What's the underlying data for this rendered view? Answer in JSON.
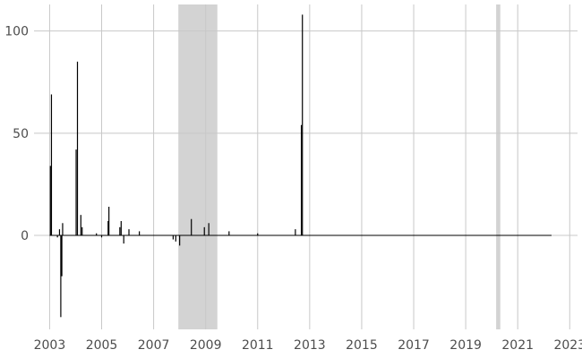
{
  "chart_data": {
    "type": "line",
    "title": "",
    "xlabel": "",
    "ylabel": "",
    "xlim": [
      2002.4,
      2023.3
    ],
    "ylim": [
      -46,
      113
    ],
    "x_ticks": [
      2003,
      2005,
      2007,
      2009,
      2011,
      2013,
      2015,
      2017,
      2019,
      2021,
      2023
    ],
    "x_tick_labels": [
      "2003",
      "2005",
      "2007",
      "2009",
      "2011",
      "2013",
      "2015",
      "2017",
      "2019",
      "2021",
      "2023"
    ],
    "y_ticks": [
      0,
      50,
      100
    ],
    "y_tick_labels": [
      "0",
      "50",
      "100"
    ],
    "grid": true,
    "shaded_periods": [
      {
        "start": 2007.95,
        "end": 2009.45
      },
      {
        "start": 2020.17,
        "end": 2020.33
      }
    ],
    "series_range": [
      2003.0,
      2022.3
    ],
    "spikes": [
      {
        "x": 2003.03,
        "y": 34
      },
      {
        "x": 2003.07,
        "y": 69
      },
      {
        "x": 2003.3,
        "y": -1
      },
      {
        "x": 2003.38,
        "y": 3
      },
      {
        "x": 2003.43,
        "y": -40
      },
      {
        "x": 2003.47,
        "y": -20
      },
      {
        "x": 2003.5,
        "y": 6
      },
      {
        "x": 2004.02,
        "y": 42
      },
      {
        "x": 2004.07,
        "y": 85
      },
      {
        "x": 2004.2,
        "y": 10
      },
      {
        "x": 2004.25,
        "y": 4
      },
      {
        "x": 2004.8,
        "y": 1
      },
      {
        "x": 2005.0,
        "y": -1
      },
      {
        "x": 2005.25,
        "y": 7
      },
      {
        "x": 2005.28,
        "y": 14
      },
      {
        "x": 2005.7,
        "y": 4
      },
      {
        "x": 2005.75,
        "y": 7
      },
      {
        "x": 2005.85,
        "y": -4
      },
      {
        "x": 2006.05,
        "y": 3
      },
      {
        "x": 2006.45,
        "y": 2
      },
      {
        "x": 2007.75,
        "y": -2
      },
      {
        "x": 2007.85,
        "y": -3
      },
      {
        "x": 2008.0,
        "y": -5
      },
      {
        "x": 2008.45,
        "y": 8
      },
      {
        "x": 2008.95,
        "y": 4
      },
      {
        "x": 2009.12,
        "y": 6
      },
      {
        "x": 2009.9,
        "y": 2
      },
      {
        "x": 2011.0,
        "y": 1
      },
      {
        "x": 2012.45,
        "y": 3
      },
      {
        "x": 2012.68,
        "y": 54
      },
      {
        "x": 2012.72,
        "y": 108
      }
    ]
  }
}
